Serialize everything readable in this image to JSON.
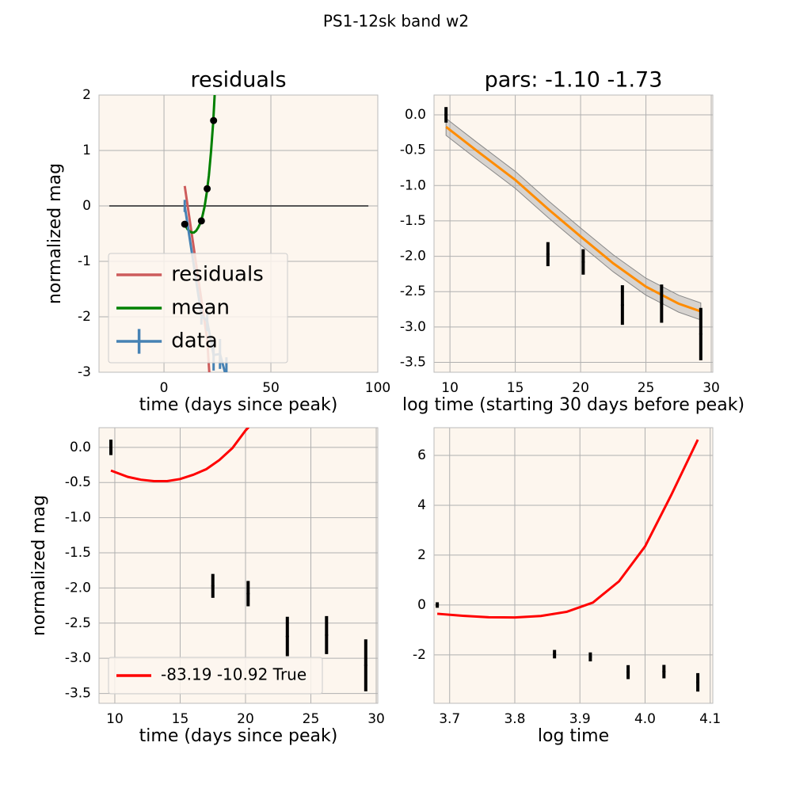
{
  "suptitle": "PS1-12sk band w2",
  "chart_data": [
    {
      "type": "line",
      "title": "residuals",
      "xlabel": "time (days since peak)",
      "ylabel": "normalized mag",
      "xlim": [
        -30.4,
        100
      ],
      "ylim": [
        -3,
        2
      ],
      "xticks": [
        0,
        50,
        100
      ],
      "yticks": [
        2,
        1,
        0,
        -1,
        -2,
        -3
      ],
      "grid": true,
      "legend": "lower left",
      "hline": {
        "y": 0,
        "xmin": -25.6,
        "xmax": 95.6,
        "color": "#555555"
      },
      "series": [
        {
          "name": "residuals",
          "color": "#cd5c5c",
          "style": "line",
          "x": [
            9.7,
            17.5,
            20.2,
            23.2
          ],
          "values": [
            0.36,
            -1.7,
            -2.4,
            -4.23
          ]
        },
        {
          "name": "mean",
          "color": "#008000",
          "style": "line",
          "x": [
            9.7,
            11,
            12,
            13,
            14,
            15,
            16,
            17,
            18,
            19,
            20,
            21,
            22,
            23,
            23.7
          ],
          "values": [
            -0.33,
            -0.42,
            -0.46,
            -0.48,
            -0.48,
            -0.45,
            -0.39,
            -0.31,
            -0.18,
            -0.01,
            0.24,
            0.55,
            0.98,
            1.5,
            2.0
          ]
        },
        {
          "name": "data",
          "color": "#4682b4",
          "style": "errorbar-line",
          "x": [
            9.7,
            17.5,
            20.2,
            23.2,
            26.2,
            29.2
          ],
          "values": [
            0.0,
            -1.97,
            -2.08,
            -2.69,
            -2.67,
            -3.1
          ],
          "errors": [
            0.11,
            0.17,
            0.18,
            0.28,
            0.27,
            0.37
          ]
        },
        {
          "color": "#000000",
          "style": "points",
          "x": [
            9.7,
            17.5,
            20.2,
            23.2
          ],
          "values": [
            -0.33,
            -0.27,
            0.31,
            1.54
          ]
        }
      ]
    },
    {
      "type": "line",
      "title": "pars: -1.10 -1.73",
      "xlabel": "log time (starting 30 days before peak)",
      "xlim": [
        8.78,
        30.12
      ],
      "ylim": [
        -3.64,
        0.28
      ],
      "xticks": [
        10,
        15,
        20,
        25,
        30
      ],
      "yticks": [
        {
          "value": 0,
          "label": "0.0"
        },
        -0.5,
        {
          "value": -1,
          "label": "-1.0"
        },
        -1.5,
        {
          "value": -2,
          "label": "-2.0"
        },
        -2.5,
        {
          "value": -3,
          "label": "-3.0"
        },
        -3.5
      ],
      "grid": true,
      "series": [
        {
          "color": "#a9a9a9",
          "style": "band",
          "x": [
            9.7,
            12,
            15,
            17.5,
            20,
            22.5,
            25,
            27.5,
            29.2
          ],
          "lower": [
            -0.29,
            -0.62,
            -1.04,
            -1.45,
            -1.84,
            -2.22,
            -2.55,
            -2.79,
            -2.9
          ],
          "upper": [
            -0.05,
            -0.38,
            -0.8,
            -1.21,
            -1.6,
            -1.98,
            -2.31,
            -2.55,
            -2.66
          ]
        },
        {
          "color": "#ff8c00",
          "style": "line",
          "x": [
            9.7,
            12,
            15,
            17.5,
            20,
            22.5,
            25,
            27.5,
            29.2
          ],
          "values": [
            -0.17,
            -0.5,
            -0.92,
            -1.33,
            -1.72,
            -2.1,
            -2.43,
            -2.67,
            -2.78
          ]
        },
        {
          "color": "#000000",
          "style": "errorbar",
          "x": [
            9.7,
            17.5,
            20.2,
            23.2,
            26.2,
            29.2
          ],
          "values": [
            0.0,
            -1.97,
            -2.08,
            -2.69,
            -2.67,
            -3.1
          ],
          "errors": [
            0.11,
            0.17,
            0.18,
            0.28,
            0.27,
            0.37
          ]
        }
      ]
    },
    {
      "type": "line",
      "xlabel": "time (days since peak)",
      "ylabel": "normalized mag",
      "xlim": [
        8.79,
        30.12
      ],
      "ylim": [
        -3.64,
        0.28
      ],
      "xticks": [
        10,
        15,
        20,
        25,
        30
      ],
      "yticks": [
        {
          "value": 0,
          "label": "0.0"
        },
        -0.5,
        {
          "value": -1,
          "label": "-1.0"
        },
        -1.5,
        {
          "value": -2,
          "label": "-2.0"
        },
        -2.5,
        {
          "value": -3,
          "label": "-3.0"
        },
        -3.5
      ],
      "grid": true,
      "legend": "lower left",
      "series": [
        {
          "name": "-83.19 -10.92 True",
          "color": "#ff0000",
          "style": "line",
          "x": [
            9.7,
            11,
            12,
            13,
            14,
            15,
            16,
            17,
            18,
            19,
            20,
            20.3
          ],
          "values": [
            -0.33,
            -0.42,
            -0.46,
            -0.48,
            -0.48,
            -0.45,
            -0.39,
            -0.31,
            -0.18,
            -0.01,
            0.24,
            0.3
          ]
        },
        {
          "color": "#000000",
          "style": "errorbar",
          "x": [
            9.7,
            17.5,
            20.2,
            23.2,
            26.2,
            29.2
          ],
          "values": [
            0.0,
            -1.97,
            -2.08,
            -2.69,
            -2.67,
            -3.1
          ],
          "errors": [
            0.11,
            0.17,
            0.18,
            0.28,
            0.27,
            0.37
          ]
        }
      ]
    },
    {
      "type": "line",
      "xlabel": "log time",
      "xlim": [
        3.676,
        4.104
      ],
      "ylim": [
        -3.94,
        7.11
      ],
      "xticks": [
        3.7,
        3.8,
        3.9,
        {
          "value": 4,
          "label": "4.0"
        },
        4.1
      ],
      "yticks": [
        6,
        4,
        2,
        0,
        -2
      ],
      "grid": true,
      "series": [
        {
          "color": "#ff0000",
          "style": "line",
          "x": [
            3.681,
            3.72,
            3.76,
            3.8,
            3.84,
            3.88,
            3.92,
            3.96,
            4.0,
            4.04,
            4.081
          ],
          "values": [
            -0.35,
            -0.43,
            -0.49,
            -0.5,
            -0.44,
            -0.27,
            0.1,
            0.95,
            2.35,
            4.4,
            6.63
          ]
        },
        {
          "color": "#000000",
          "style": "errorbar",
          "x": [
            3.681,
            3.861,
            3.916,
            3.974,
            4.029,
            4.081
          ],
          "values": [
            0.0,
            -1.97,
            -2.08,
            -2.69,
            -2.67,
            -3.1
          ],
          "errors": [
            0.11,
            0.17,
            0.18,
            0.28,
            0.27,
            0.37
          ]
        }
      ]
    }
  ]
}
